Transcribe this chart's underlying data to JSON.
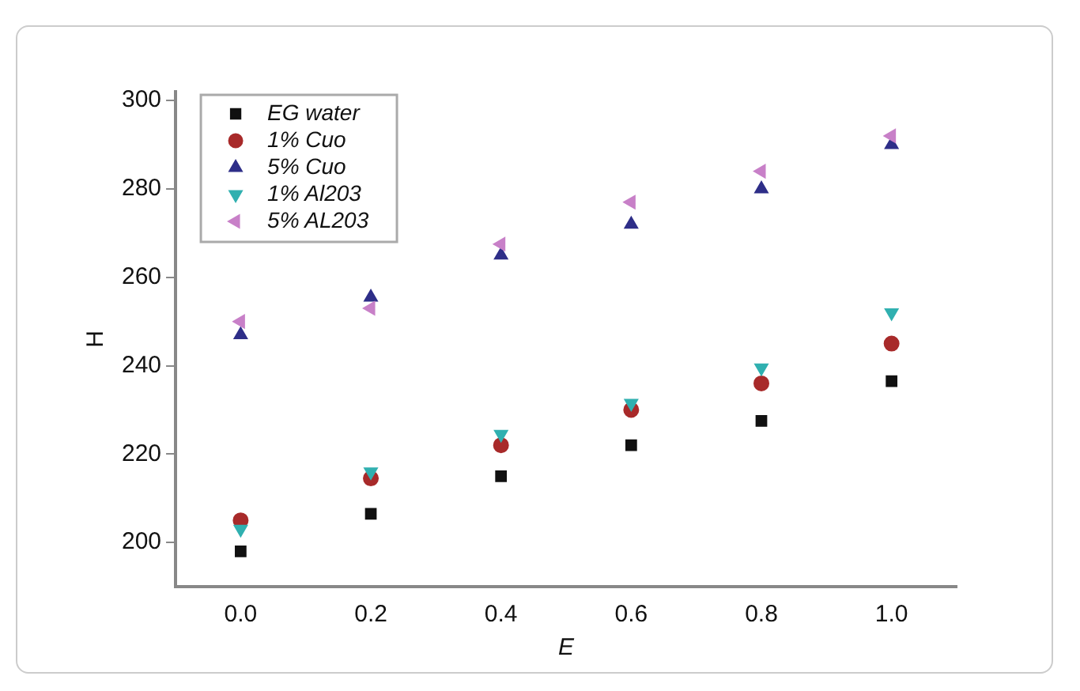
{
  "chart_data": {
    "type": "scatter",
    "xlabel": "E",
    "ylabel": "H",
    "x": [
      0,
      0.2,
      0.4,
      0.6,
      0.8,
      1.0
    ],
    "xlim": [
      -0.1,
      1.1
    ],
    "xticks": [
      {
        "value": 0,
        "label": "0.0"
      },
      {
        "value": 0.2,
        "label": "0.2"
      },
      {
        "value": 0.4,
        "label": "0.4"
      },
      {
        "value": 0.6,
        "label": "0.6"
      },
      {
        "value": 0.8,
        "label": "0.8"
      },
      {
        "value": 1.0,
        "label": "1.0"
      }
    ],
    "ylim": [
      190,
      302
    ],
    "yticks": [
      200,
      220,
      240,
      260,
      280,
      300
    ],
    "grid": false,
    "legend": "top left",
    "series": [
      {
        "name": "EG water",
        "color": "#111111",
        "marker": "square",
        "values": [
          198,
          206.5,
          215,
          222,
          227.5,
          236.5
        ]
      },
      {
        "name": "1% Cuo",
        "color": "#a82a2a",
        "marker": "circle",
        "values": [
          205,
          214.5,
          222,
          230,
          236,
          245
        ]
      },
      {
        "name": "5% Cuo",
        "color": "#2e2e88",
        "marker": "triangle",
        "values": [
          247,
          255.5,
          265,
          272,
          280,
          290
        ]
      },
      {
        "name": "1% Al203",
        "color": "#30b0b0",
        "marker": "triangle-down",
        "values": [
          203,
          216,
          224.5,
          231.5,
          239.5,
          252
        ]
      },
      {
        "name": "5% AL203",
        "color": "#c880c8",
        "marker": "triangle-left",
        "values": [
          250,
          253,
          267.5,
          277,
          284,
          292
        ]
      }
    ]
  }
}
